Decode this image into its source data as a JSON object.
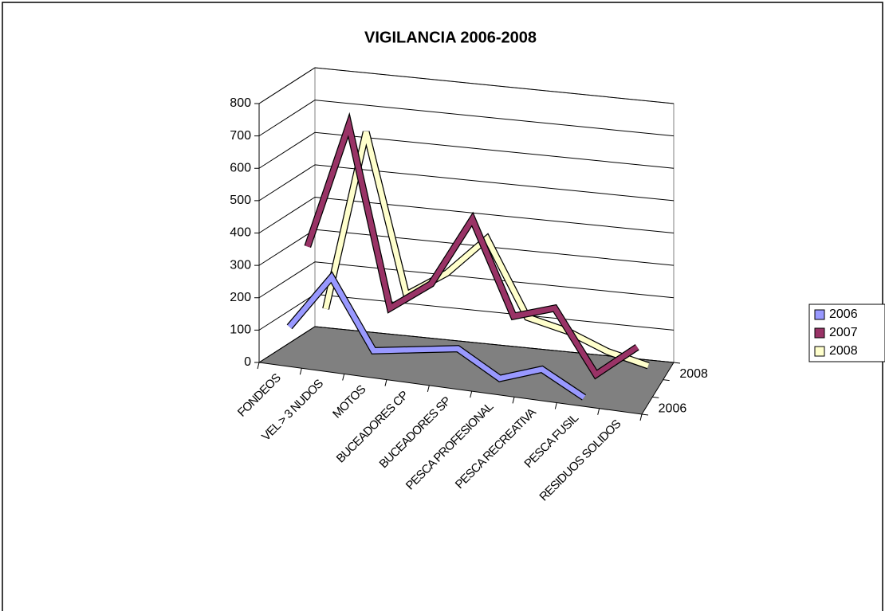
{
  "chart_data": {
    "type": "line3d",
    "title": "VIGILANCIA 2006-2008",
    "categories": [
      "FONDEOS",
      "VEL > 3 NUDOS",
      "MOTOS",
      "BUCEADORES CP",
      "BUCEADORES SP",
      "PESCA PROFESIONAL",
      "PESCA RECREATIVA",
      "PESCA FUSIL",
      "RESIDUOS SOLIDOS"
    ],
    "depth_categories": [
      "2006",
      null,
      "2008"
    ],
    "series": [
      {
        "name": "2006",
        "color": "#9999ff",
        "values": [
          100,
          270,
          60,
          80,
          100,
          25,
          70,
          0,
          null
        ]
      },
      {
        "name": "2007",
        "color": "#993366",
        "values": [
          310,
          700,
          150,
          240,
          455,
          170,
          210,
          20,
          120
        ]
      },
      {
        "name": "2008",
        "color": "#ffffcc",
        "values": [
          80,
          640,
          150,
          230,
          350,
          120,
          90,
          40,
          10
        ]
      }
    ],
    "ylim": [
      0,
      800
    ],
    "yticks": [
      0,
      100,
      200,
      300,
      400,
      500,
      600,
      700,
      800
    ],
    "grid": true,
    "legend": "right"
  }
}
